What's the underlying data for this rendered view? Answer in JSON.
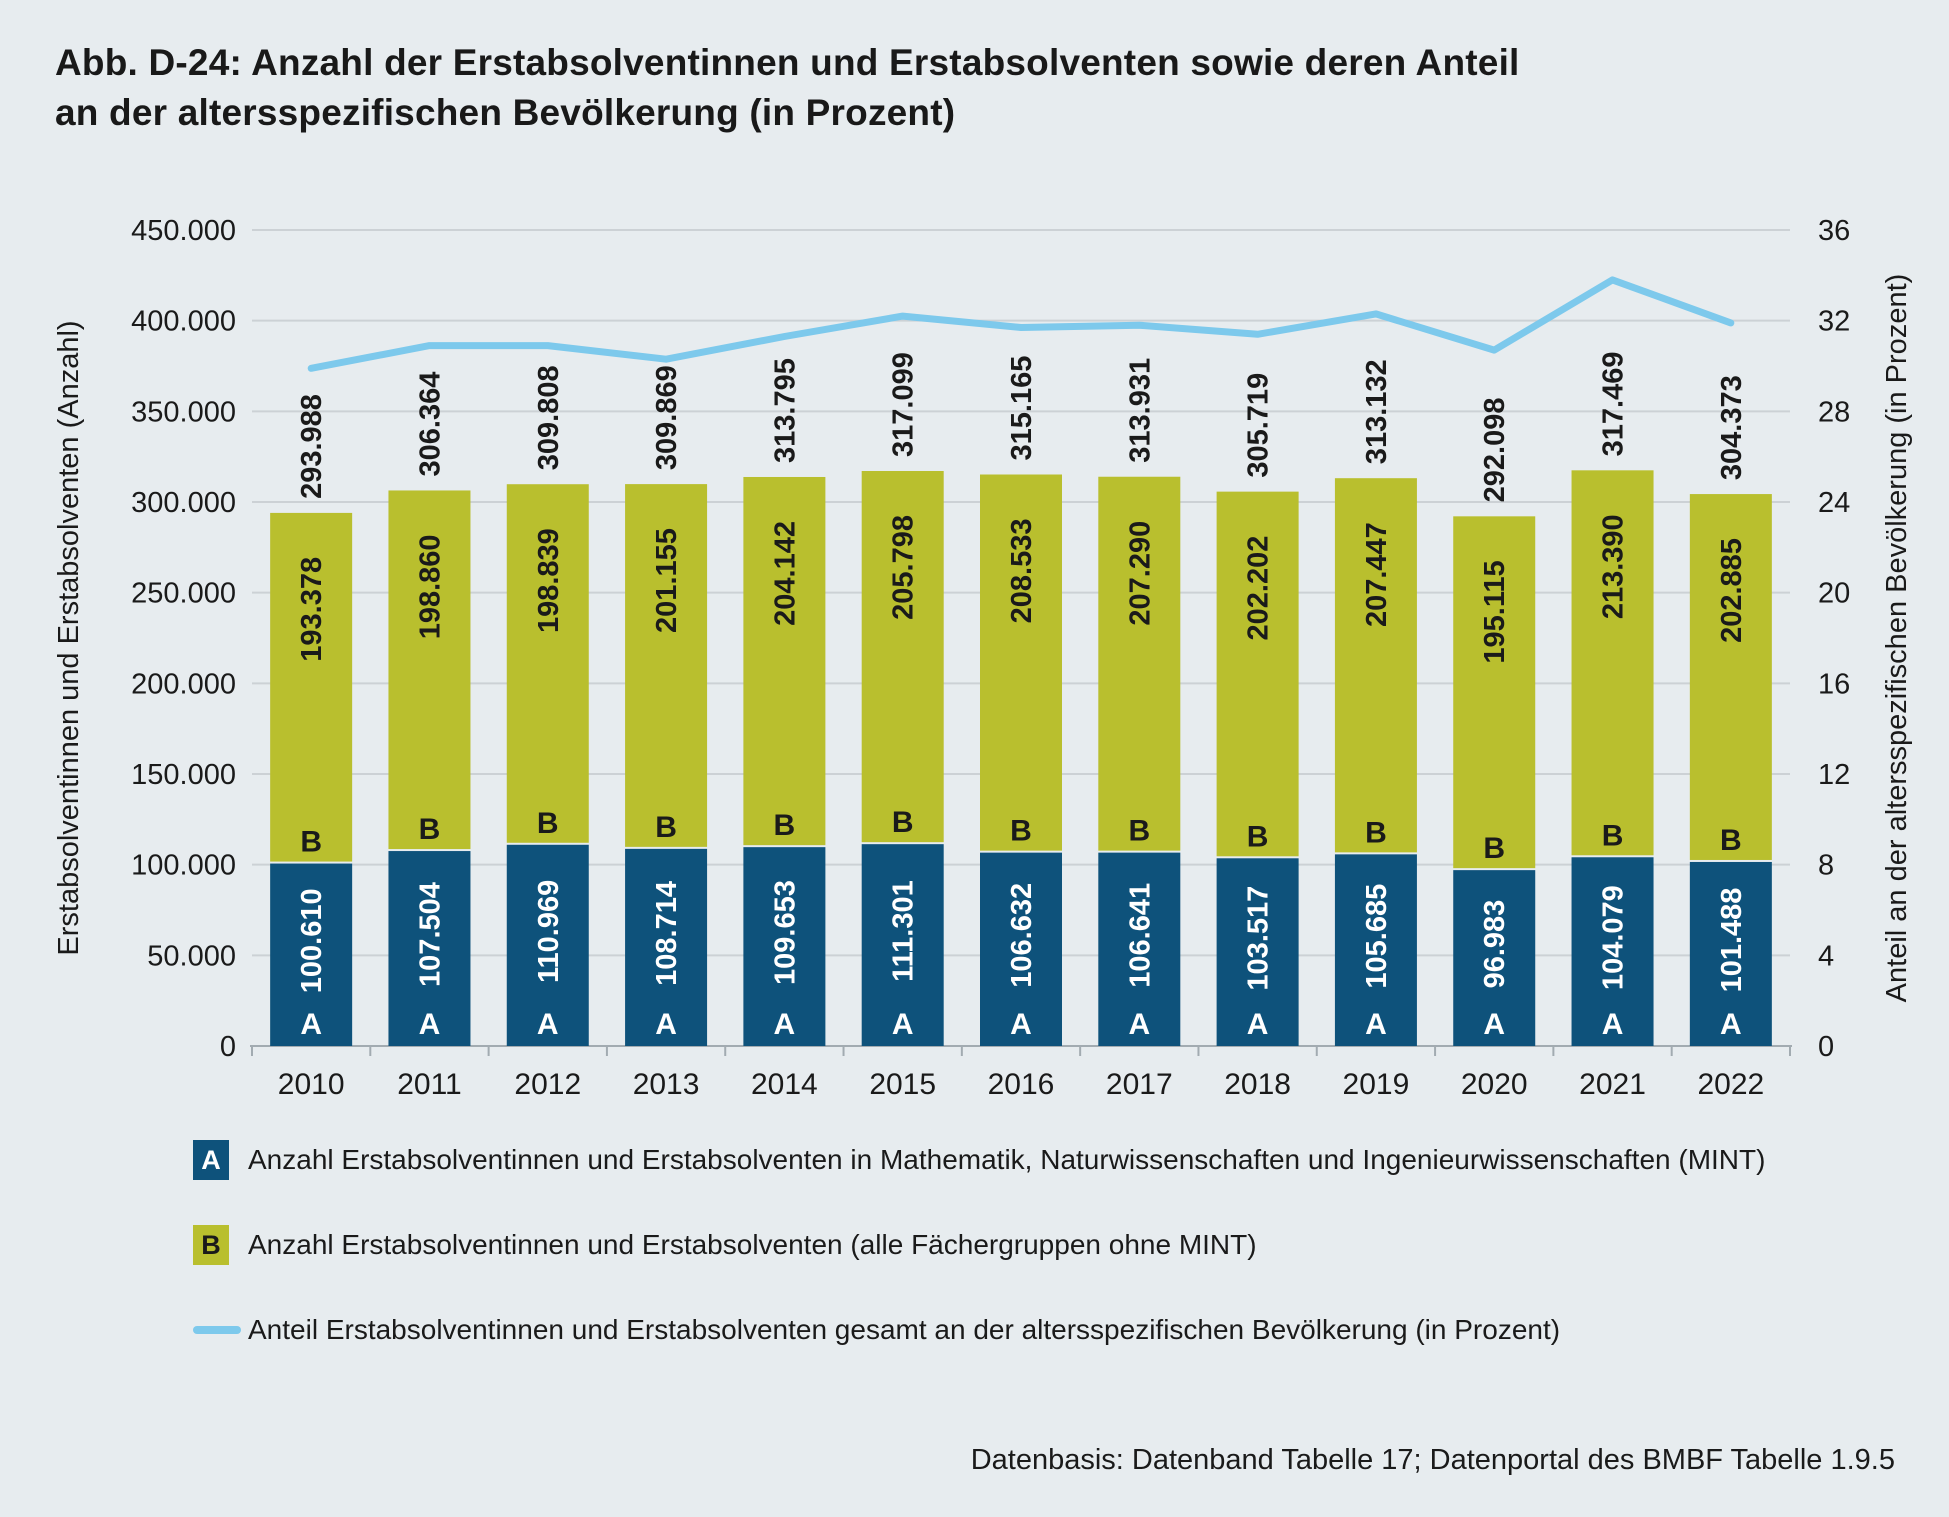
{
  "title": {
    "line1": "Abb. D-24: Anzahl der Erstabsolventinnen und Erstabsolventen sowie deren Anteil",
    "line2": "an der altersspezifischen Bevölkerung (in Prozent)"
  },
  "source": "Datenbasis: Datenband Tabelle 17; Datenportal des BMBF Tabelle 1.9.5",
  "colors": {
    "background": "#e7ecef",
    "bar_a_blue": "#0e527b",
    "bar_b_olive": "#b9bf2e",
    "line_lightblue": "#7dc9ec",
    "grid": "#ccd1d5",
    "axis": "#a2abb1",
    "text": "#1a1a1a",
    "label_on_blue": "#ffffff"
  },
  "legend": [
    {
      "marker": "A",
      "label": "Anzahl Erstabsolventinnen und Erstabsolventen in Mathematik, Naturwissenschaften und Ingenieurwissenschaften (MINT)"
    },
    {
      "marker": "B",
      "label": "Anzahl Erstabsolventinnen und Erstabsolventen (alle Fächergruppen ohne MINT)"
    },
    {
      "marker": "line",
      "label": "Anteil Erstabsolventinnen und Erstabsolventen gesamt an der altersspezifischen Bevölkerung (in Prozent)"
    }
  ],
  "chart_data": {
    "type": "bar",
    "subtype": "stacked-bars-with-line-overlay",
    "categories": [
      "2010",
      "2011",
      "2012",
      "2013",
      "2014",
      "2015",
      "2016",
      "2017",
      "2018",
      "2019",
      "2020",
      "2021",
      "2022"
    ],
    "series": [
      {
        "name": "A",
        "role": "bar-bottom",
        "axis": "left",
        "values": [
          100610,
          107504,
          110969,
          108714,
          109653,
          111301,
          106632,
          106641,
          103517,
          105685,
          96983,
          104079,
          101488
        ]
      },
      {
        "name": "B",
        "role": "bar-top",
        "axis": "left",
        "values": [
          193378,
          198860,
          198839,
          201155,
          204142,
          205798,
          208533,
          207290,
          202202,
          207447,
          195115,
          213390,
          202885
        ]
      },
      {
        "name": "Anteil gesamt (in Prozent)",
        "role": "line",
        "axis": "right",
        "values": [
          29.9,
          30.9,
          30.9,
          30.3,
          31.3,
          32.2,
          31.7,
          31.8,
          31.4,
          32.3,
          30.7,
          33.8,
          31.9
        ]
      }
    ],
    "totals": [
      293988,
      306364,
      309808,
      309869,
      313795,
      317099,
      315165,
      313931,
      305719,
      313132,
      292098,
      317469,
      304373
    ],
    "left_axis": {
      "label": "Erstabsolventinnen und Erstabsolventen (Anzahl)",
      "min": 0,
      "max": 450000,
      "step": 50000,
      "tick_labels": [
        "0",
        "50.000",
        "100.000",
        "150.000",
        "200.000",
        "250.000",
        "300.000",
        "350.000",
        "400.000",
        "450.000"
      ]
    },
    "right_axis": {
      "label": "Anteil an der altersspezifischen Bevölkerung (in Prozent)",
      "min": 0,
      "max": 36,
      "step": 4,
      "tick_labels": [
        "0",
        "4",
        "8",
        "12",
        "16",
        "20",
        "24",
        "28",
        "32",
        "36"
      ]
    },
    "grid": true,
    "legend_position": "bottom-left",
    "segment_letters": {
      "bottom": "A",
      "top": "B"
    }
  }
}
